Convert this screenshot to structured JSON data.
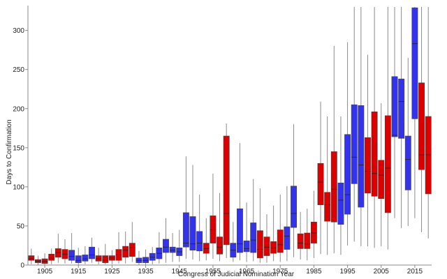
{
  "chart_data": {
    "type": "box",
    "xlabel": "Congress of Judicial Nomination Year",
    "ylabel": "Days to Confirmation",
    "xlim": [
      1900,
      2020
    ],
    "ylim": [
      0,
      330
    ],
    "xticks": [
      1905,
      1915,
      1925,
      1935,
      1945,
      1955,
      1965,
      1975,
      1985,
      1995,
      2005,
      2015
    ],
    "yticks": [
      0,
      50,
      100,
      150,
      200,
      250,
      300
    ],
    "colors": {
      "blue": "#3333ee",
      "red": "#dd0000"
    },
    "boxes": [
      {
        "x": 1901,
        "color": "red",
        "min": 1,
        "q1": 6,
        "median": 8,
        "q3": 12,
        "max": 21
      },
      {
        "x": 1903,
        "color": "red",
        "min": 0,
        "q1": 3,
        "median": 5,
        "q3": 7,
        "max": 12
      },
      {
        "x": 1905,
        "color": "red",
        "min": 0,
        "q1": 2,
        "median": 5,
        "q3": 8,
        "max": 15
      },
      {
        "x": 1907,
        "color": "red",
        "min": 1,
        "q1": 6,
        "median": 9,
        "q3": 14,
        "max": 21
      },
      {
        "x": 1909,
        "color": "red",
        "min": 3,
        "q1": 10,
        "median": 16,
        "q3": 21,
        "max": 40
      },
      {
        "x": 1911,
        "color": "red",
        "min": 2,
        "q1": 8,
        "median": 14,
        "q3": 20,
        "max": 33
      },
      {
        "x": 1913,
        "color": "blue",
        "min": 2,
        "q1": 6,
        "median": 11,
        "q3": 19,
        "max": 41
      },
      {
        "x": 1915,
        "color": "blue",
        "min": 0,
        "q1": 3,
        "median": 6,
        "q3": 12,
        "max": 22
      },
      {
        "x": 1917,
        "color": "blue",
        "min": 1,
        "q1": 5,
        "median": 8,
        "q3": 13,
        "max": 24
      },
      {
        "x": 1919,
        "color": "blue",
        "min": 3,
        "q1": 8,
        "median": 13,
        "q3": 23,
        "max": 35
      },
      {
        "x": 1921,
        "color": "red",
        "min": 1,
        "q1": 5,
        "median": 8,
        "q3": 12,
        "max": 22
      },
      {
        "x": 1923,
        "color": "red",
        "min": 1,
        "q1": 3,
        "median": 6,
        "q3": 12,
        "max": 27
      },
      {
        "x": 1925,
        "color": "red",
        "min": 1,
        "q1": 6,
        "median": 9,
        "q3": 12,
        "max": 19
      },
      {
        "x": 1927,
        "color": "red",
        "min": 2,
        "q1": 6,
        "median": 13,
        "q3": 20,
        "max": 42
      },
      {
        "x": 1929,
        "color": "red",
        "min": 2,
        "q1": 10,
        "median": 19,
        "q3": 24,
        "max": 43
      },
      {
        "x": 1931,
        "color": "red",
        "min": 4,
        "q1": 11,
        "median": 22,
        "q3": 28,
        "max": 55
      },
      {
        "x": 1933,
        "color": "blue",
        "min": 0,
        "q1": 3,
        "median": 6,
        "q3": 9,
        "max": 18
      },
      {
        "x": 1935,
        "color": "blue",
        "min": 0,
        "q1": 3,
        "median": 6,
        "q3": 10,
        "max": 20
      },
      {
        "x": 1937,
        "color": "blue",
        "min": 1,
        "q1": 6,
        "median": 10,
        "q3": 15,
        "max": 23
      },
      {
        "x": 1939,
        "color": "blue",
        "min": 2,
        "q1": 8,
        "median": 15,
        "q3": 22,
        "max": 42
      },
      {
        "x": 1941,
        "color": "blue",
        "min": 3,
        "q1": 16,
        "median": 23,
        "q3": 33,
        "max": 60
      },
      {
        "x": 1943,
        "color": "blue",
        "min": 4,
        "q1": 16,
        "median": 19,
        "q3": 23,
        "max": 41
      },
      {
        "x": 1945,
        "color": "blue",
        "min": 4,
        "q1": 12,
        "median": 17,
        "q3": 22,
        "max": 45
      },
      {
        "x": 1947,
        "color": "blue",
        "min": 8,
        "q1": 23,
        "median": 28,
        "q3": 67,
        "max": 139
      },
      {
        "x": 1949,
        "color": "blue",
        "min": 7,
        "q1": 19,
        "median": 27,
        "q3": 62,
        "max": 128
      },
      {
        "x": 1951,
        "color": "blue",
        "min": 5,
        "q1": 18,
        "median": 28,
        "q3": 43,
        "max": 90
      },
      {
        "x": 1953,
        "color": "red",
        "min": 6,
        "q1": 15,
        "median": 21,
        "q3": 28,
        "max": 60
      },
      {
        "x": 1955,
        "color": "red",
        "min": 8,
        "q1": 28,
        "median": 45,
        "q3": 63,
        "max": 117
      },
      {
        "x": 1957,
        "color": "red",
        "min": 5,
        "q1": 14,
        "median": 23,
        "q3": 36,
        "max": 92
      },
      {
        "x": 1959,
        "color": "red",
        "min": 9,
        "q1": 26,
        "median": 66,
        "q3": 165,
        "max": 181
      },
      {
        "x": 1961,
        "color": "blue",
        "min": 4,
        "q1": 10,
        "median": 19,
        "q3": 28,
        "max": 55
      },
      {
        "x": 1963,
        "color": "blue",
        "min": 6,
        "q1": 16,
        "median": 27,
        "q3": 72,
        "max": 156
      },
      {
        "x": 1965,
        "color": "blue",
        "min": 4,
        "q1": 17,
        "median": 21,
        "q3": 31,
        "max": 80
      },
      {
        "x": 1967,
        "color": "blue",
        "min": 5,
        "q1": 16,
        "median": 32,
        "q3": 54,
        "max": 110
      },
      {
        "x": 1969,
        "color": "red",
        "min": 3,
        "q1": 9,
        "median": 20,
        "q3": 44,
        "max": 98
      },
      {
        "x": 1971,
        "color": "red",
        "min": 3,
        "q1": 12,
        "median": 23,
        "q3": 36,
        "max": 65
      },
      {
        "x": 1973,
        "color": "red",
        "min": 5,
        "q1": 15,
        "median": 22,
        "q3": 30,
        "max": 76
      },
      {
        "x": 1975,
        "color": "red",
        "min": 4,
        "q1": 16,
        "median": 26,
        "q3": 45,
        "max": 90
      },
      {
        "x": 1977,
        "color": "blue",
        "min": 5,
        "q1": 20,
        "median": 37,
        "q3": 49,
        "max": 101
      },
      {
        "x": 1979,
        "color": "blue",
        "min": 10,
        "q1": 48,
        "median": 66,
        "q3": 101,
        "max": 180
      },
      {
        "x": 1981,
        "color": "red",
        "min": 7,
        "q1": 21,
        "median": 28,
        "q3": 40,
        "max": 68
      },
      {
        "x": 1983,
        "color": "red",
        "min": 6,
        "q1": 21,
        "median": 27,
        "q3": 41,
        "max": 72
      },
      {
        "x": 1985,
        "color": "red",
        "min": 9,
        "q1": 28,
        "median": 41,
        "q3": 55,
        "max": 95
      },
      {
        "x": 1987,
        "color": "red",
        "min": 14,
        "q1": 77,
        "median": 106,
        "q3": 130,
        "max": 209
      },
      {
        "x": 1989,
        "color": "red",
        "min": 13,
        "q1": 56,
        "median": 77,
        "q3": 93,
        "max": 190
      },
      {
        "x": 1991,
        "color": "red",
        "min": 15,
        "q1": 55,
        "median": 97,
        "q3": 145,
        "max": 280
      },
      {
        "x": 1993,
        "color": "blue",
        "min": 13,
        "q1": 52,
        "median": 83,
        "q3": 105,
        "max": 190
      },
      {
        "x": 1995,
        "color": "blue",
        "min": 25,
        "q1": 65,
        "median": 90,
        "q3": 167,
        "max": 285
      },
      {
        "x": 1997,
        "color": "blue",
        "min": 30,
        "q1": 104,
        "median": 138,
        "q3": 205,
        "max": 330
      },
      {
        "x": 1999,
        "color": "blue",
        "min": 24,
        "q1": 74,
        "median": 128,
        "q3": 204,
        "max": 330
      },
      {
        "x": 2001,
        "color": "red",
        "min": 24,
        "q1": 92,
        "median": 120,
        "q3": 163,
        "max": 269
      },
      {
        "x": 2003,
        "color": "red",
        "min": 22,
        "q1": 88,
        "median": 117,
        "q3": 196,
        "max": 330
      },
      {
        "x": 2005,
        "color": "red",
        "min": 24,
        "q1": 85,
        "median": 115,
        "q3": 134,
        "max": 207
      },
      {
        "x": 2007,
        "color": "red",
        "min": 20,
        "q1": 67,
        "median": 124,
        "q3": 191,
        "max": 330
      },
      {
        "x": 2009,
        "color": "blue",
        "min": 60,
        "q1": 164,
        "median": 166,
        "q3": 241,
        "max": 330
      },
      {
        "x": 2011,
        "color": "blue",
        "min": 47,
        "q1": 162,
        "median": 209,
        "q3": 238,
        "max": 330
      },
      {
        "x": 2013,
        "color": "blue",
        "min": 50,
        "q1": 96,
        "median": 135,
        "q3": 165,
        "max": 265
      },
      {
        "x": 2015,
        "color": "blue",
        "min": 60,
        "q1": 187,
        "median": 283,
        "q3": 329,
        "max": 330
      },
      {
        "x": 2017,
        "color": "red",
        "min": 42,
        "q1": 122,
        "median": 141,
        "q3": 233,
        "max": 330
      },
      {
        "x": 2019,
        "color": "red",
        "min": 34,
        "q1": 91,
        "median": 141,
        "q3": 190,
        "max": 330
      }
    ]
  }
}
